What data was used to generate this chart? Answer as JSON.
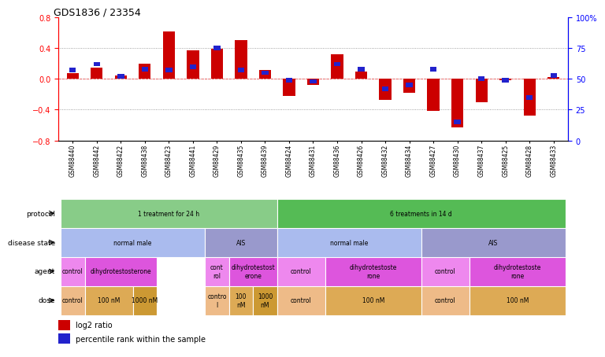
{
  "title": "GDS1836 / 23354",
  "samples": [
    "GSM88440",
    "GSM88442",
    "GSM88422",
    "GSM88438",
    "GSM88423",
    "GSM88441",
    "GSM88429",
    "GSM88435",
    "GSM88439",
    "GSM88424",
    "GSM88431",
    "GSM88436",
    "GSM88426",
    "GSM88432",
    "GSM88434",
    "GSM88427",
    "GSM88430",
    "GSM88437",
    "GSM88425",
    "GSM88428",
    "GSM88433"
  ],
  "log2_ratio": [
    0.08,
    0.15,
    0.04,
    0.2,
    0.62,
    0.37,
    0.39,
    0.5,
    0.12,
    -0.22,
    -0.08,
    0.32,
    0.1,
    -0.27,
    -0.18,
    -0.42,
    -0.63,
    -0.3,
    -0.02,
    -0.48,
    0.02
  ],
  "percentile": [
    57,
    62,
    52,
    58,
    57,
    60,
    75,
    57,
    55,
    49,
    48,
    62,
    58,
    42,
    45,
    58,
    15,
    50,
    49,
    35,
    53
  ],
  "ylim_left": [
    -0.8,
    0.8
  ],
  "ylim_right": [
    0,
    100
  ],
  "yticks_left": [
    -0.8,
    -0.4,
    0.0,
    0.4,
    0.8
  ],
  "yticks_right": [
    0,
    25,
    50,
    75,
    100
  ],
  "bar_color": "#cc0000",
  "dot_color": "#2222cc",
  "protocol_row": [
    {
      "label": "1 treatment for 24 h",
      "start": 0,
      "end": 8,
      "color": "#88cc88"
    },
    {
      "label": "6 treatments in 14 d",
      "start": 9,
      "end": 20,
      "color": "#55bb55"
    }
  ],
  "disease_row": [
    {
      "label": "normal male",
      "start": 0,
      "end": 5,
      "color": "#aabbee"
    },
    {
      "label": "AIS",
      "start": 6,
      "end": 8,
      "color": "#9999cc"
    },
    {
      "label": "normal male",
      "start": 9,
      "end": 14,
      "color": "#aabbee"
    },
    {
      "label": "AIS",
      "start": 15,
      "end": 20,
      "color": "#9999cc"
    }
  ],
  "agent_row": [
    {
      "label": "control",
      "start": 0,
      "end": 0,
      "color": "#ee88ee"
    },
    {
      "label": "dihydrotestosterone",
      "start": 1,
      "end": 3,
      "color": "#dd55dd"
    },
    {
      "label": "cont\nrol",
      "start": 6,
      "end": 6,
      "color": "#ee88ee"
    },
    {
      "label": "dihydrotestost\nerone",
      "start": 7,
      "end": 8,
      "color": "#dd55dd"
    },
    {
      "label": "control",
      "start": 9,
      "end": 10,
      "color": "#ee88ee"
    },
    {
      "label": "dihydrotestoste\nrone",
      "start": 11,
      "end": 14,
      "color": "#dd55dd"
    },
    {
      "label": "control",
      "start": 15,
      "end": 16,
      "color": "#ee88ee"
    },
    {
      "label": "dihydrotestoste\nrone",
      "start": 17,
      "end": 20,
      "color": "#dd55dd"
    }
  ],
  "dose_row": [
    {
      "label": "control",
      "start": 0,
      "end": 0,
      "color": "#eebb88"
    },
    {
      "label": "100 nM",
      "start": 1,
      "end": 2,
      "color": "#ddaa55"
    },
    {
      "label": "1000 nM",
      "start": 3,
      "end": 3,
      "color": "#cc9933"
    },
    {
      "label": "contro\nl",
      "start": 6,
      "end": 6,
      "color": "#eebb88"
    },
    {
      "label": "100\nnM",
      "start": 7,
      "end": 7,
      "color": "#ddaa55"
    },
    {
      "label": "1000\nnM",
      "start": 8,
      "end": 8,
      "color": "#cc9933"
    },
    {
      "label": "control",
      "start": 9,
      "end": 10,
      "color": "#eebb88"
    },
    {
      "label": "100 nM",
      "start": 11,
      "end": 14,
      "color": "#ddaa55"
    },
    {
      "label": "control",
      "start": 15,
      "end": 16,
      "color": "#eebb88"
    },
    {
      "label": "100 nM",
      "start": 17,
      "end": 20,
      "color": "#ddaa55"
    }
  ],
  "row_labels": [
    "protocol",
    "disease state",
    "agent",
    "dose"
  ]
}
